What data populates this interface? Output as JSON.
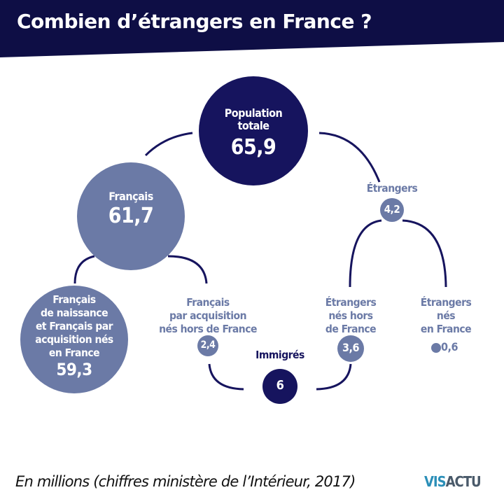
{
  "title": "Combien d’étrangers en France ?",
  "colors": {
    "header": "#0e0e45",
    "dark": "#16145e",
    "medium": "#6b7aa6",
    "logo": "#2b8fb8"
  },
  "nodes": {
    "population": {
      "label_1": "Population",
      "label_2": "totale",
      "value": "65,9"
    },
    "francais": {
      "label": "Français",
      "value": "61,7"
    },
    "francais_naissance": {
      "lines": [
        "Français",
        "de naissance",
        "et Français par",
        "acquisition nés",
        "en France"
      ],
      "value": "59,3"
    },
    "francais_acquisition": {
      "lines": [
        "Français",
        "par acquisition",
        "nés hors de France"
      ],
      "value": "2,4"
    },
    "etrangers": {
      "label": "Étrangers",
      "value": "4,2"
    },
    "etrangers_hors": {
      "lines": [
        "Étrangers",
        "nés hors",
        "de France"
      ],
      "value": "3,6"
    },
    "etrangers_nes": {
      "lines": [
        "Étrangers",
        "nés",
        "en France"
      ],
      "value": "0,6"
    },
    "immigres": {
      "label": "Immigrés",
      "value": "6"
    }
  },
  "footer": "En millions (chiffres ministère de l’Intérieur, 2017)",
  "logo": "VISACTU"
}
